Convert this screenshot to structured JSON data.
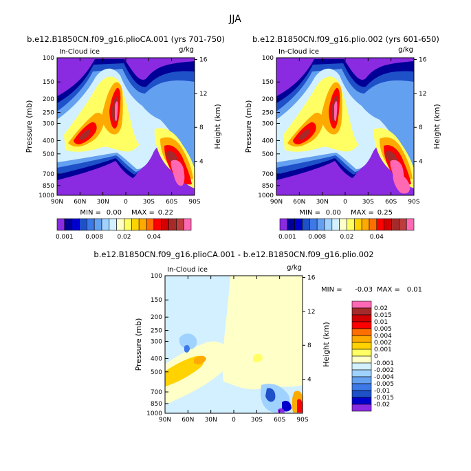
{
  "figure": {
    "title": "JJA"
  },
  "chart_data": [
    {
      "type": "heatmap",
      "panel_title": "b.e12.B1850CN.f09_g16.plioCA.001 (yrs 701-750)",
      "field_label": "In-Cloud ice",
      "units": "g/kg",
      "ylabel": "Pressure (mb)",
      "y2label": "Height (km)",
      "xticks": [
        "90N",
        "60N",
        "30N",
        "0",
        "30S",
        "60S",
        "90S"
      ],
      "xlim": [
        90,
        -90
      ],
      "yticks": [
        "100",
        "150",
        "200",
        "250",
        "300",
        "400",
        "500",
        "700",
        "850",
        "1000"
      ],
      "ylim": [
        1000,
        100
      ],
      "y2ticks": [
        "4",
        "8",
        "12",
        "16"
      ],
      "min_label": "MIN =",
      "min_value": "0.00",
      "max_label": "MAX =",
      "max_value": "0.22",
      "colorbar": {
        "orientation": "horizontal",
        "labels": [
          "0.001",
          "0.008",
          "0.02",
          "0.04"
        ],
        "colors": [
          "#8a2be2",
          "#000096",
          "#0000cd",
          "#1e50c8",
          "#3c78e6",
          "#64a0f0",
          "#a0d2ff",
          "#d2f0ff",
          "#ffffc8",
          "#ffff64",
          "#ffd200",
          "#ffaa00",
          "#ff6e00",
          "#ff0000",
          "#d20000",
          "#a52a2a",
          "#be3c3c",
          "#ff69b4"
        ]
      },
      "features": [
        {
          "name": "northern midlatitude maximum",
          "lat": 50,
          "pressure": 400
        },
        {
          "name": "tropical upper maximum",
          "lat": 5,
          "pressure": 280
        },
        {
          "name": "southern midlatitude maximum",
          "lat": -62,
          "pressure": 680
        }
      ]
    },
    {
      "type": "heatmap",
      "panel_title": "b.e12.B1850CN.f09_g16.plio.002 (yrs 601-650)",
      "field_label": "In-Cloud ice",
      "units": "g/kg",
      "ylabel": "Pressure (mb)",
      "y2label": "Height (km)",
      "xticks": [
        "90N",
        "60N",
        "30N",
        "0",
        "30S",
        "60S",
        "90S"
      ],
      "xlim": [
        90,
        -90
      ],
      "yticks": [
        "100",
        "150",
        "200",
        "250",
        "300",
        "400",
        "500",
        "700",
        "850",
        "1000"
      ],
      "ylim": [
        1000,
        100
      ],
      "y2ticks": [
        "4",
        "8",
        "12",
        "16"
      ],
      "min_label": "MIN =",
      "min_value": "0.00",
      "max_label": "MAX =",
      "max_value": "0.25",
      "colorbar": {
        "orientation": "horizontal",
        "labels": [
          "0.001",
          "0.008",
          "0.02",
          "0.04"
        ],
        "colors": [
          "#8a2be2",
          "#000096",
          "#0000cd",
          "#1e50c8",
          "#3c78e6",
          "#64a0f0",
          "#a0d2ff",
          "#d2f0ff",
          "#ffffc8",
          "#ffff64",
          "#ffd200",
          "#ffaa00",
          "#ff6e00",
          "#ff0000",
          "#d20000",
          "#a52a2a",
          "#be3c3c",
          "#ff69b4"
        ]
      }
    },
    {
      "type": "heatmap",
      "panel_title": "b.e12.B1850CN.f09_g16.plioCA.001 - b.e12.B1850CN.f09_g16.plio.002",
      "field_label": "In-Cloud ice",
      "units": "g/kg",
      "ylabel": "Pressure (mb)",
      "y2label": "Height (km)",
      "xticks": [
        "90N",
        "60N",
        "30N",
        "0",
        "30S",
        "60S",
        "90S"
      ],
      "xlim": [
        90,
        -90
      ],
      "yticks": [
        "100",
        "150",
        "200",
        "250",
        "300",
        "400",
        "500",
        "700",
        "850",
        "1000"
      ],
      "ylim": [
        1000,
        100
      ],
      "y2ticks": [
        "4",
        "8",
        "12",
        "16"
      ],
      "min_label": "MIN =",
      "min_value": "-0.03",
      "max_label": "MAX =",
      "max_value": "0.01",
      "colorbar": {
        "orientation": "vertical",
        "labels": [
          "0.02",
          "0.015",
          "0.01",
          "0.005",
          "0.004",
          "0.002",
          "0.001",
          "0",
          "-0.001",
          "-0.002",
          "-0.004",
          "-0.005",
          "-0.01",
          "-0.015",
          "-0.02"
        ],
        "colors": [
          "#ff69b4",
          "#a52a2a",
          "#d20000",
          "#ff0000",
          "#ff6e00",
          "#ffaa00",
          "#ffd200",
          "#ffff64",
          "#ffffc8",
          "#d2f0ff",
          "#a0d2ff",
          "#64a0f0",
          "#3c78e6",
          "#1e50c8",
          "#0000cd",
          "#8a2be2"
        ]
      }
    }
  ]
}
